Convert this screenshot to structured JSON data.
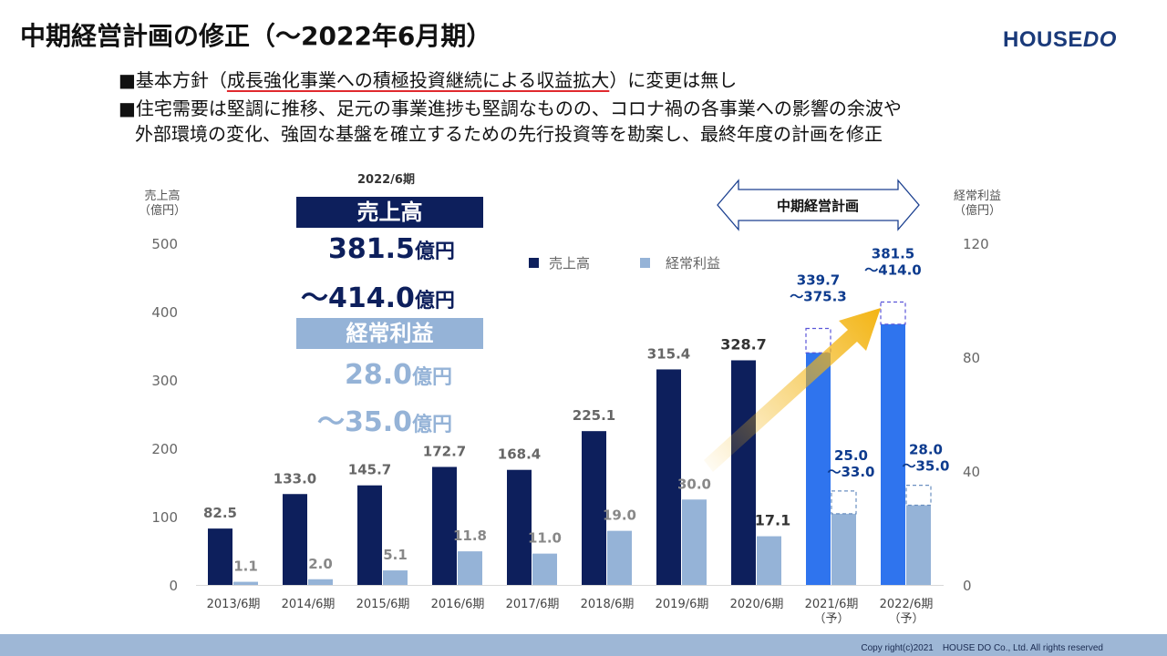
{
  "title": "中期経営計画の修正（〜2022年6月期）",
  "logo": {
    "house": "HOUSE",
    "do": "DO"
  },
  "bullets": {
    "b1_prefix": "■基本方針（",
    "b1_underlined": "成長強化事業への積極投資継続による収益拡大",
    "b1_suffix": "）に変更は無し",
    "b2_line1": "■住宅需要は堅調に推移、足元の事業進捗も堅調なものの、コロナ禍の各事業への影響の余波や",
    "b2_line2": "外部環境の変化、強固な基盤を確立するための先行投資等を勘案し、最終年度の計画を修正"
  },
  "summary": {
    "period": "2022/6期",
    "sales_label": "売上高",
    "sales_line1": "381.5",
    "sales_line2": "〜414.0",
    "profit_label": "経常利益",
    "profit_line1": "28.0",
    "profit_line2": "〜35.0",
    "unit": "億円"
  },
  "plan_label": "中期経営計画",
  "footer": "Copy right(c)2021　HOUSE DO Co., Ltd. All rights reserved",
  "colors": {
    "sales": "#0d1f5c",
    "sales_plan": "#2f74ee",
    "profit": "#95b3d7",
    "plan_label": "#0d3b8e",
    "arrow": "#f3b515"
  },
  "chart_data": {
    "type": "bar",
    "categories": [
      "2013/6期",
      "2014/6期",
      "2015/6期",
      "2016/6期",
      "2017/6期",
      "2018/6期",
      "2019/6期",
      "2020/6期",
      "2021/6期\n（予）",
      "2022/6期\n（予）"
    ],
    "series": [
      {
        "name": "売上高",
        "axis": "left",
        "values": [
          82.5,
          133.0,
          145.7,
          172.7,
          168.4,
          225.1,
          315.4,
          328.7,
          339.7,
          381.5
        ],
        "range_top": [
          null,
          null,
          null,
          null,
          null,
          null,
          null,
          null,
          375.3,
          414.0
        ]
      },
      {
        "name": "経常利益",
        "axis": "right",
        "values": [
          1.1,
          2.0,
          5.1,
          11.8,
          11.0,
          19.0,
          30.0,
          17.1,
          25.0,
          28.0
        ],
        "range_top": [
          null,
          null,
          null,
          null,
          null,
          null,
          null,
          null,
          33.0,
          35.0
        ]
      }
    ],
    "value_labels": {
      "sales": [
        "82.5",
        "133.0",
        "145.7",
        "172.7",
        "168.4",
        "225.1",
        "315.4",
        "328.7",
        "339.7\n〜375.3",
        "381.5\n〜414.0"
      ],
      "profit": [
        "1.1",
        "2.0",
        "5.1",
        "11.8",
        "11.0",
        "19.0",
        "30.0",
        "17.1",
        "25.0\n〜33.0",
        "28.0\n〜35.0"
      ]
    },
    "y_left": {
      "label": "売上高\n（億円）",
      "ylim": [
        0,
        500
      ],
      "ticks": [
        0,
        100,
        200,
        300,
        400,
        500
      ]
    },
    "y_right": {
      "label": "経常利益\n（億円）",
      "ylim": [
        0,
        120
      ],
      "ticks": [
        0,
        40,
        80,
        120
      ]
    },
    "legend": [
      "売上高",
      "経常利益"
    ],
    "legend_position": "top-center",
    "grid": false
  }
}
